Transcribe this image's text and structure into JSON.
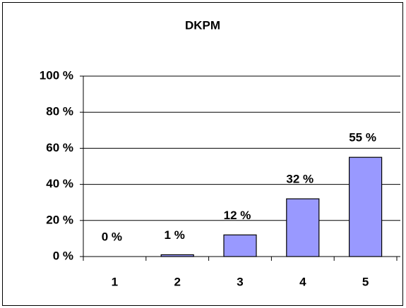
{
  "chart_data": {
    "type": "bar",
    "title": "DKPM",
    "categories": [
      "1",
      "2",
      "3",
      "4",
      "5"
    ],
    "values": [
      0,
      1,
      12,
      32,
      55
    ],
    "value_labels": [
      "0 %",
      "1 %",
      "12 %",
      "32 %",
      "55 %"
    ],
    "color": "#9999ff",
    "ylim": [
      0,
      100
    ],
    "yticks": [
      {
        "value": 0,
        "label": "0 %"
      },
      {
        "value": 20,
        "label": "20 %"
      },
      {
        "value": 40,
        "label": "40 %"
      },
      {
        "value": 60,
        "label": "60 %"
      },
      {
        "value": 80,
        "label": "80 %"
      },
      {
        "value": 100,
        "label": "100 %"
      }
    ],
    "grid": true
  }
}
